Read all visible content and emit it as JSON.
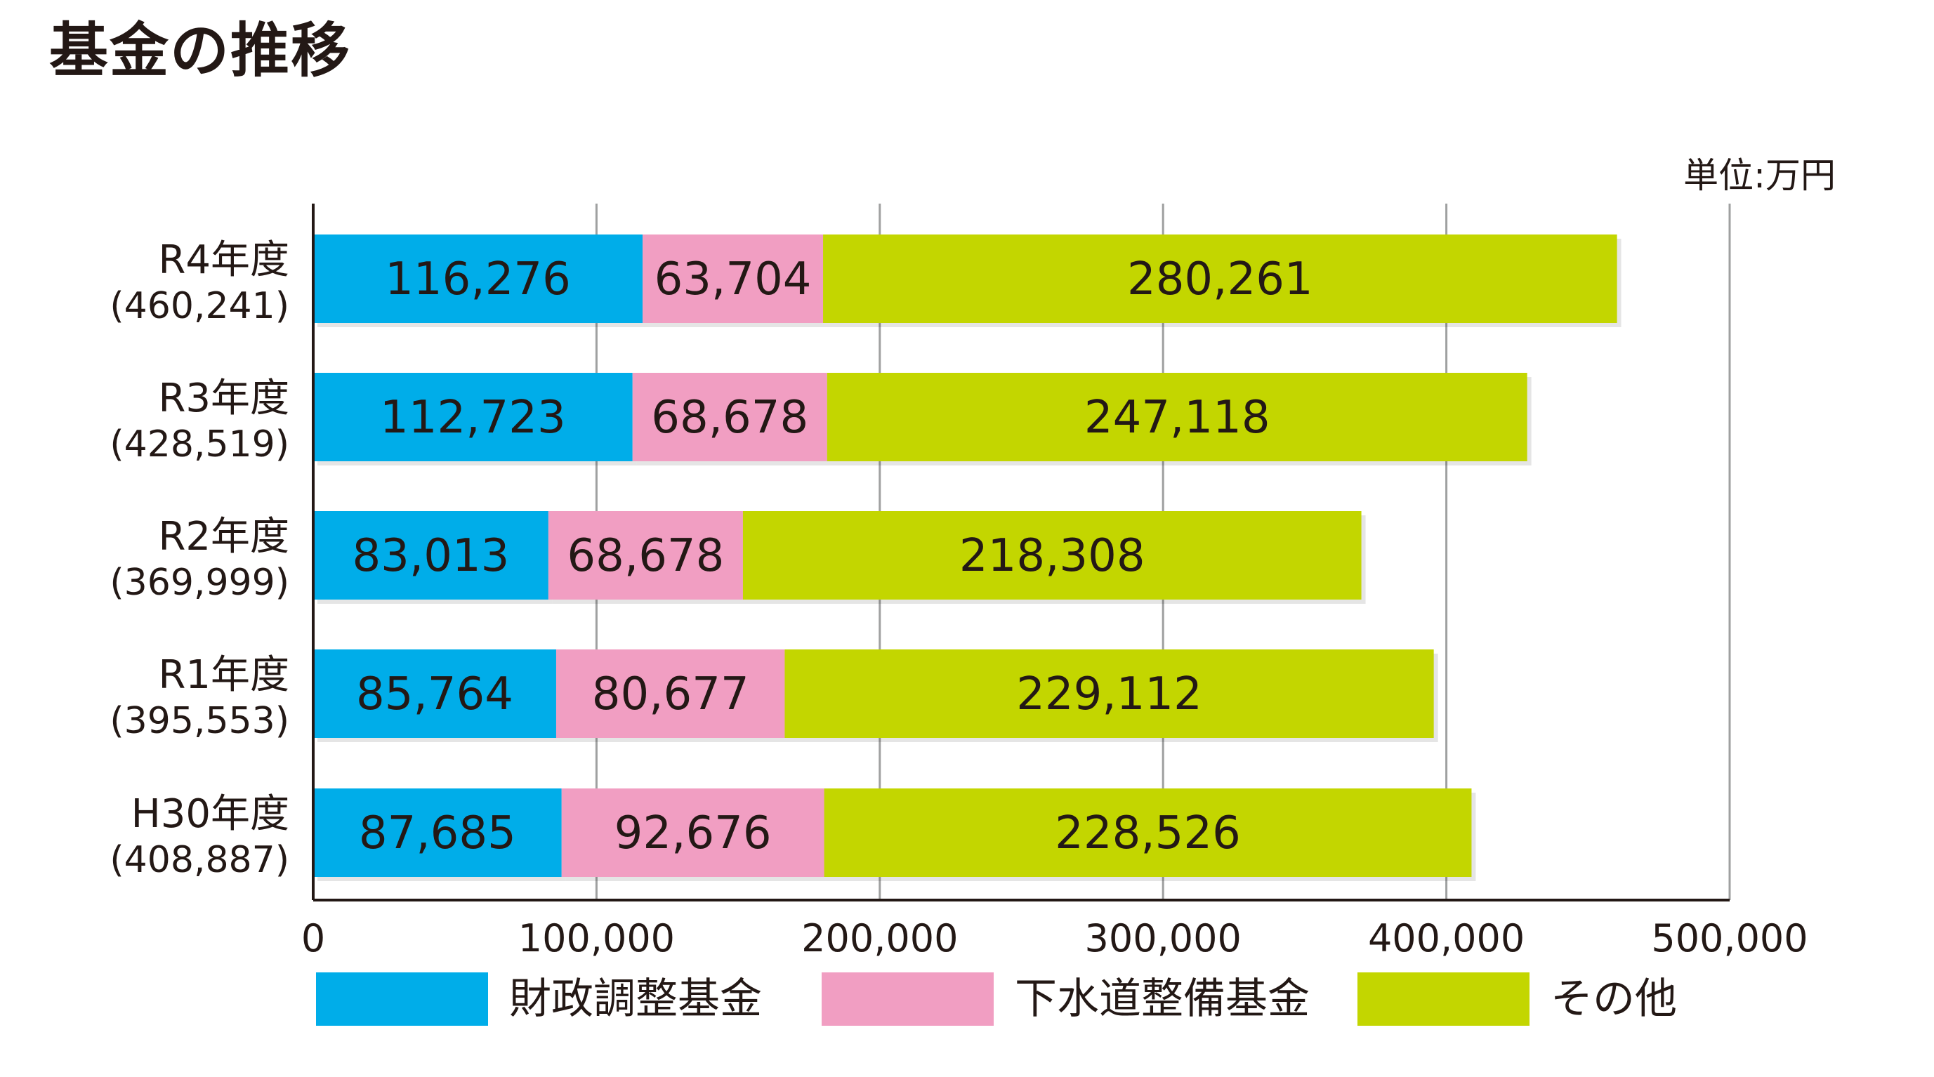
{
  "title": "基金の推移",
  "unit": "単位:万円",
  "colors": {
    "series": [
      "#00ade9",
      "#f19ec2",
      "#c3d600"
    ],
    "grid": "#9fa0a0",
    "axis": "#231815"
  },
  "chart_data": {
    "type": "bar",
    "orientation": "horizontal",
    "stacked": true,
    "title": "基金の推移",
    "unit": "単位:万円",
    "categories": [
      "R4年度",
      "R3年度",
      "R2年度",
      "R1年度",
      "H30年度"
    ],
    "category_totals": [
      "(460,241)",
      "(428,519)",
      "(369,999)",
      "(395,553)",
      "(408,887)"
    ],
    "series": [
      {
        "name": "財政調整基金",
        "values": [
          116276,
          112723,
          83013,
          85764,
          87685
        ],
        "labels": [
          "116,276",
          "112,723",
          "83,013",
          "85,764",
          "87,685"
        ]
      },
      {
        "name": "下水道整備基金",
        "values": [
          63704,
          68678,
          68678,
          80677,
          92676
        ],
        "labels": [
          "63,704",
          "68,678",
          "68,678",
          "80,677",
          "92,676"
        ]
      },
      {
        "name": "その他",
        "values": [
          280261,
          247118,
          218308,
          229112,
          228526
        ],
        "labels": [
          "280,261",
          "247,118",
          "218,308",
          "229,112",
          "228,526"
        ]
      }
    ],
    "xlim": [
      0,
      500000
    ],
    "x_ticks": [
      0,
      100000,
      200000,
      300000,
      400000,
      500000
    ],
    "x_tick_labels": [
      "0",
      "100,000",
      "200,000",
      "300,000",
      "400,000",
      "500,000"
    ],
    "grid": true,
    "legend": "bottom"
  }
}
